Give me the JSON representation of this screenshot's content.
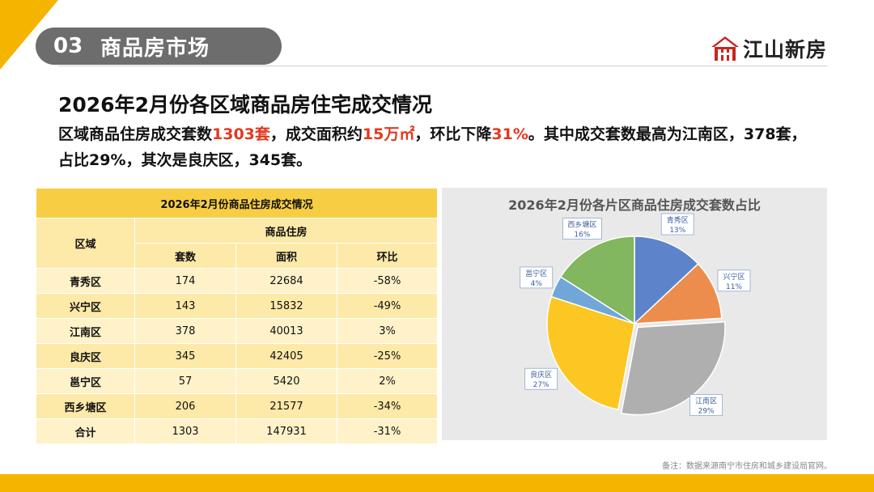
{
  "section": {
    "number": "03",
    "name": "商品房市场"
  },
  "logo": {
    "text": "江山新房",
    "icon": "house-logo-icon"
  },
  "title": "2026年2月份各区域商品房住宅成交情况",
  "summary": {
    "p1": "区域商品住房成交套数",
    "h1": "1303套",
    "p2": "，成交面积约",
    "h2": "15万㎡",
    "p3": "，环比下降",
    "h3": "31%",
    "p4": "。其中成交套数最高为江南区，378套，占比29%，其次是良庆区，345套。"
  },
  "table": {
    "caption": "2026年2月份商品住房成交情况",
    "col_region": "区域",
    "group_header": "商品住房",
    "col_units": "套数",
    "col_area": "面积",
    "col_mom": "环比",
    "rows": [
      {
        "region": "青秀区",
        "units": "174",
        "area": "22684",
        "mom": "-58%"
      },
      {
        "region": "兴宁区",
        "units": "143",
        "area": "15832",
        "mom": "-49%"
      },
      {
        "region": "江南区",
        "units": "378",
        "area": "40013",
        "mom": "3%"
      },
      {
        "region": "良庆区",
        "units": "345",
        "area": "42405",
        "mom": "-25%"
      },
      {
        "region": "邕宁区",
        "units": "57",
        "area": "5420",
        "mom": "2%"
      },
      {
        "region": "西乡塘区",
        "units": "206",
        "area": "21577",
        "mom": "-34%"
      },
      {
        "region": "合计",
        "units": "1303",
        "area": "147931",
        "mom": "-31%"
      }
    ]
  },
  "chart_data": {
    "type": "pie",
    "title": "2026年2月份各片区商品住房成交套数占比",
    "categories": [
      "青秀区",
      "兴宁区",
      "江南区",
      "良庆区",
      "邕宁区",
      "西乡塘区"
    ],
    "values": [
      13,
      11,
      29,
      27,
      4,
      16
    ],
    "labels": [
      "13%",
      "11%",
      "29%",
      "27%",
      "4%",
      "16%"
    ],
    "colors": [
      "#4472c4",
      "#ed7d31",
      "#a5a5a5",
      "#ffc000",
      "#5b9bd5",
      "#70ad47"
    ],
    "exploded": [
      "江南区"
    ]
  },
  "note": "备注：数据来源南宁市住房和城乡建设局官网。",
  "colors": {
    "accent": "#f5b400",
    "highlight": "#e03a1e",
    "pill": "#6d6d6d"
  }
}
